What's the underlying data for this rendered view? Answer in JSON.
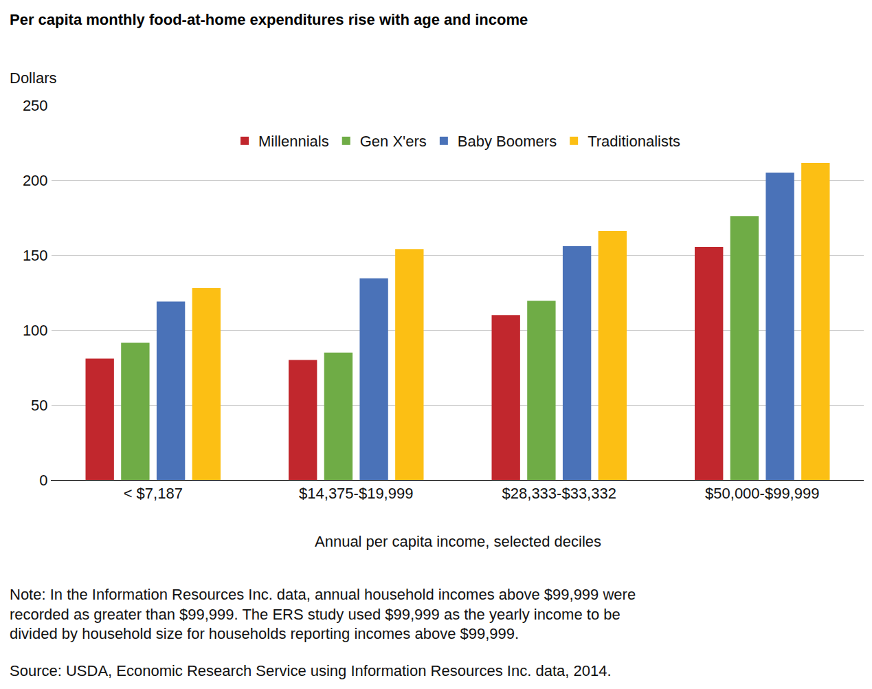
{
  "chart_data": {
    "type": "bar",
    "title": "Per capita monthly food-at-home expenditures rise with age and income",
    "y_label": "Dollars",
    "x_label": "Annual per capita income, selected deciles",
    "note": [
      "Note: In the Information Resources Inc. data, annual household incomes above $99,999 were",
      "recorded as greater than $99,999. The ERS study used $99,999 as the yearly income to be",
      "divided by household size for households reporting incomes above $99,999."
    ],
    "source": "Source: USDA, Economic Research Service using Information Resources Inc. data, 2014.",
    "categories": [
      "< $7,187",
      "$14,375-$19,999",
      "$28,333-$33,332",
      "$50,000-$99,999"
    ],
    "series": [
      {
        "name": "Millennials",
        "color": "#c1272d",
        "values": [
          81,
          80,
          110,
          155.5
        ]
      },
      {
        "name": "Gen X'ers",
        "color": "#6fac46",
        "values": [
          91.5,
          85,
          119.5,
          176
        ]
      },
      {
        "name": "Baby Boomers",
        "color": "#4a72b8",
        "values": [
          119,
          134.5,
          156,
          205
        ]
      },
      {
        "name": "Traditionalists",
        "color": "#fcbf14",
        "values": [
          128,
          154,
          166,
          211.5
        ]
      }
    ],
    "ylim": [
      0,
      250
    ],
    "yticks": [
      0,
      50,
      100,
      150,
      200,
      250
    ],
    "grid": true,
    "legend": "top"
  }
}
